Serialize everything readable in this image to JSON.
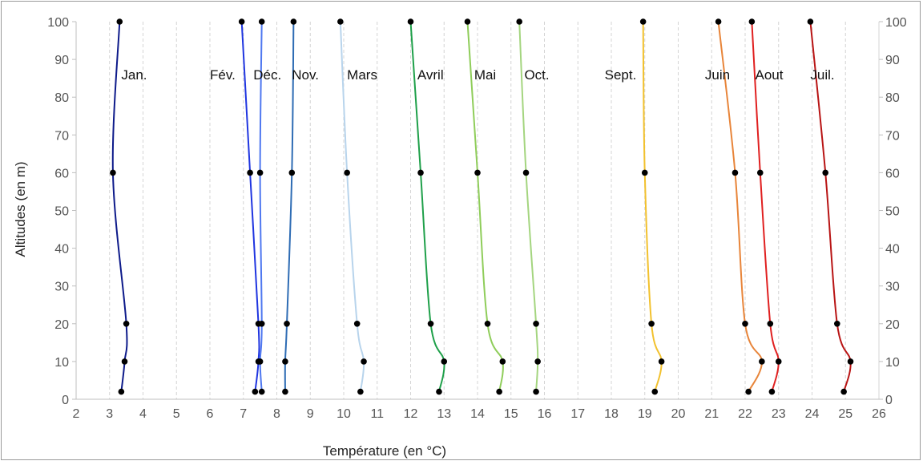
{
  "chart_data": {
    "type": "line",
    "title": "",
    "xlabel": "Température (en °C)",
    "ylabel": "Altitudes (en m)",
    "xlim": [
      2,
      26
    ],
    "ylim": [
      0,
      100
    ],
    "x_ticks": [
      "2",
      "3",
      "4",
      "5",
      "6",
      "7",
      "8",
      "9",
      "10",
      "11",
      "12",
      "13",
      "14",
      "15",
      "16",
      "17",
      "18",
      "19",
      "20",
      "21",
      "22",
      "23",
      "24",
      "25",
      "26"
    ],
    "y_ticks": [
      "0",
      "10",
      "20",
      "30",
      "40",
      "50",
      "60",
      "70",
      "80",
      "90",
      "100"
    ],
    "grid": "vertical dashed",
    "legend": "inline labels",
    "series": [
      {
        "name": "Jan.",
        "color": "#0d1a8a",
        "label_x": 3.35,
        "points": [
          [
            3.35,
            2
          ],
          [
            3.45,
            10
          ],
          [
            3.5,
            20
          ],
          [
            3.1,
            60
          ],
          [
            3.3,
            100
          ]
        ]
      },
      {
        "name": "Fév.",
        "color": "#1f35e0",
        "label_x": 6.0,
        "points": [
          [
            7.35,
            2
          ],
          [
            7.45,
            10
          ],
          [
            7.45,
            20
          ],
          [
            7.2,
            60
          ],
          [
            6.95,
            100
          ]
        ]
      },
      {
        "name": "Déc.",
        "color": "#4f78f0",
        "label_x": 7.3,
        "points": [
          [
            7.55,
            2
          ],
          [
            7.5,
            10
          ],
          [
            7.55,
            20
          ],
          [
            7.5,
            60
          ],
          [
            7.55,
            100
          ]
        ]
      },
      {
        "name": "Nov.",
        "color": "#2e6cb4",
        "label_x": 8.45,
        "points": [
          [
            8.25,
            2
          ],
          [
            8.25,
            10
          ],
          [
            8.3,
            20
          ],
          [
            8.45,
            60
          ],
          [
            8.5,
            100
          ]
        ]
      },
      {
        "name": "Mars",
        "color": "#b8d4ec",
        "label_x": 10.1,
        "points": [
          [
            10.5,
            2
          ],
          [
            10.6,
            10
          ],
          [
            10.4,
            20
          ],
          [
            10.1,
            60
          ],
          [
            9.9,
            100
          ]
        ]
      },
      {
        "name": "Avril",
        "color": "#1fa04a",
        "label_x": 12.2,
        "points": [
          [
            12.85,
            2
          ],
          [
            13.0,
            10
          ],
          [
            12.6,
            20
          ],
          [
            12.3,
            60
          ],
          [
            12.0,
            100
          ]
        ]
      },
      {
        "name": "Mai",
        "color": "#8fcd5a",
        "label_x": 13.9,
        "points": [
          [
            14.65,
            2
          ],
          [
            14.75,
            10
          ],
          [
            14.3,
            20
          ],
          [
            14.0,
            60
          ],
          [
            13.7,
            100
          ]
        ]
      },
      {
        "name": "Oct.",
        "color": "#a4d57f",
        "label_x": 15.4,
        "points": [
          [
            15.75,
            2
          ],
          [
            15.8,
            10
          ],
          [
            15.75,
            20
          ],
          [
            15.45,
            60
          ],
          [
            15.25,
            100
          ]
        ]
      },
      {
        "name": "Sept.",
        "color": "#f2c12e",
        "label_x": 17.8,
        "points": [
          [
            19.3,
            2
          ],
          [
            19.5,
            10
          ],
          [
            19.2,
            20
          ],
          [
            19.0,
            60
          ],
          [
            18.95,
            100
          ]
        ]
      },
      {
        "name": "Juin",
        "color": "#e8853a",
        "label_x": 20.8,
        "points": [
          [
            22.1,
            2
          ],
          [
            22.5,
            10
          ],
          [
            22.0,
            20
          ],
          [
            21.7,
            60
          ],
          [
            21.2,
            100
          ]
        ]
      },
      {
        "name": "Aout",
        "color": "#e02020",
        "label_x": 22.3,
        "points": [
          [
            22.8,
            2
          ],
          [
            23.0,
            10
          ],
          [
            22.75,
            20
          ],
          [
            22.45,
            60
          ],
          [
            22.2,
            100
          ]
        ]
      },
      {
        "name": "Juil.",
        "color": "#b81414",
        "label_x": 23.95,
        "points": [
          [
            24.95,
            2
          ],
          [
            25.15,
            10
          ],
          [
            24.75,
            20
          ],
          [
            24.4,
            60
          ],
          [
            23.95,
            100
          ]
        ]
      }
    ]
  }
}
